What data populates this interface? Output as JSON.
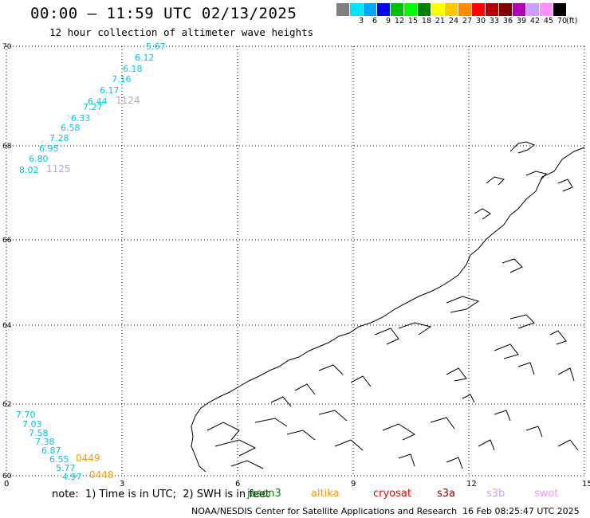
{
  "header": {
    "title": "00:00 – 11:59 UTC 02/13/2025",
    "subtitle": "12 hour collection of altimeter wave heights"
  },
  "color_scale": {
    "colors": [
      "#7f7f7f",
      "#00e5ff",
      "#00a6ff",
      "#0000ff",
      "#00c000",
      "#00ff00",
      "#008000",
      "#ffff00",
      "#ffc800",
      "#ff8c00",
      "#ff0000",
      "#b40000",
      "#800000",
      "#b000b0",
      "#c8a0ff",
      "#ff90ff",
      "#000000"
    ],
    "labels": [
      "",
      "3",
      "6",
      "9",
      "12",
      "15",
      "18",
      "21",
      "24",
      "27",
      "30",
      "33",
      "36",
      "39",
      "42",
      "45",
      "70"
    ],
    "unit": "(ft)"
  },
  "map": {
    "lat_labels": [
      "70",
      "68",
      "66",
      "64",
      "62",
      "60"
    ],
    "lon_labels": [
      "0",
      "3",
      "6",
      "9",
      "12",
      "15"
    ],
    "coast_color": "#000000",
    "grid_color": "#000000"
  },
  "tracks": [
    {
      "color": "#00c8e0",
      "label": "1124",
      "label_color": "#b8a0e0",
      "values": [
        "5.67",
        "6.12",
        "6.18",
        "7.16",
        "6.17",
        "6.44",
        "7.27",
        "6.33",
        "6.58",
        "7.28",
        "6.95",
        "6.80",
        "8.02"
      ]
    },
    {
      "label": "1125",
      "label_color": "#b8a0e0"
    },
    {
      "color": "#00c8e0",
      "label": "0449",
      "label_color": "#ff9900",
      "values": [
        "7.70",
        "7.03",
        "7.58",
        "7.38",
        "6.87",
        "6.55",
        "5.77",
        "4.97"
      ]
    },
    {
      "label": "0448",
      "label_color": "#ff9900"
    }
  ],
  "note": "note:  1) Time is in UTC;  2) SWH is in feet",
  "missions": [
    {
      "name": "jason3",
      "color": "#008000"
    },
    {
      "name": "altika",
      "color": "#ff9900"
    },
    {
      "name": "cryosat",
      "color": "#ff0000"
    },
    {
      "name": "s3a",
      "color": "#a00000"
    },
    {
      "name": "s3b",
      "color": "#c8a8ff"
    },
    {
      "name": "swot",
      "color": "#ff90ff"
    }
  ],
  "footer": {
    "agency": "NOAA/NESDIS Center for Satellite Applications and Research",
    "generated": "16 Feb 08:25:47 UTC 2025"
  }
}
